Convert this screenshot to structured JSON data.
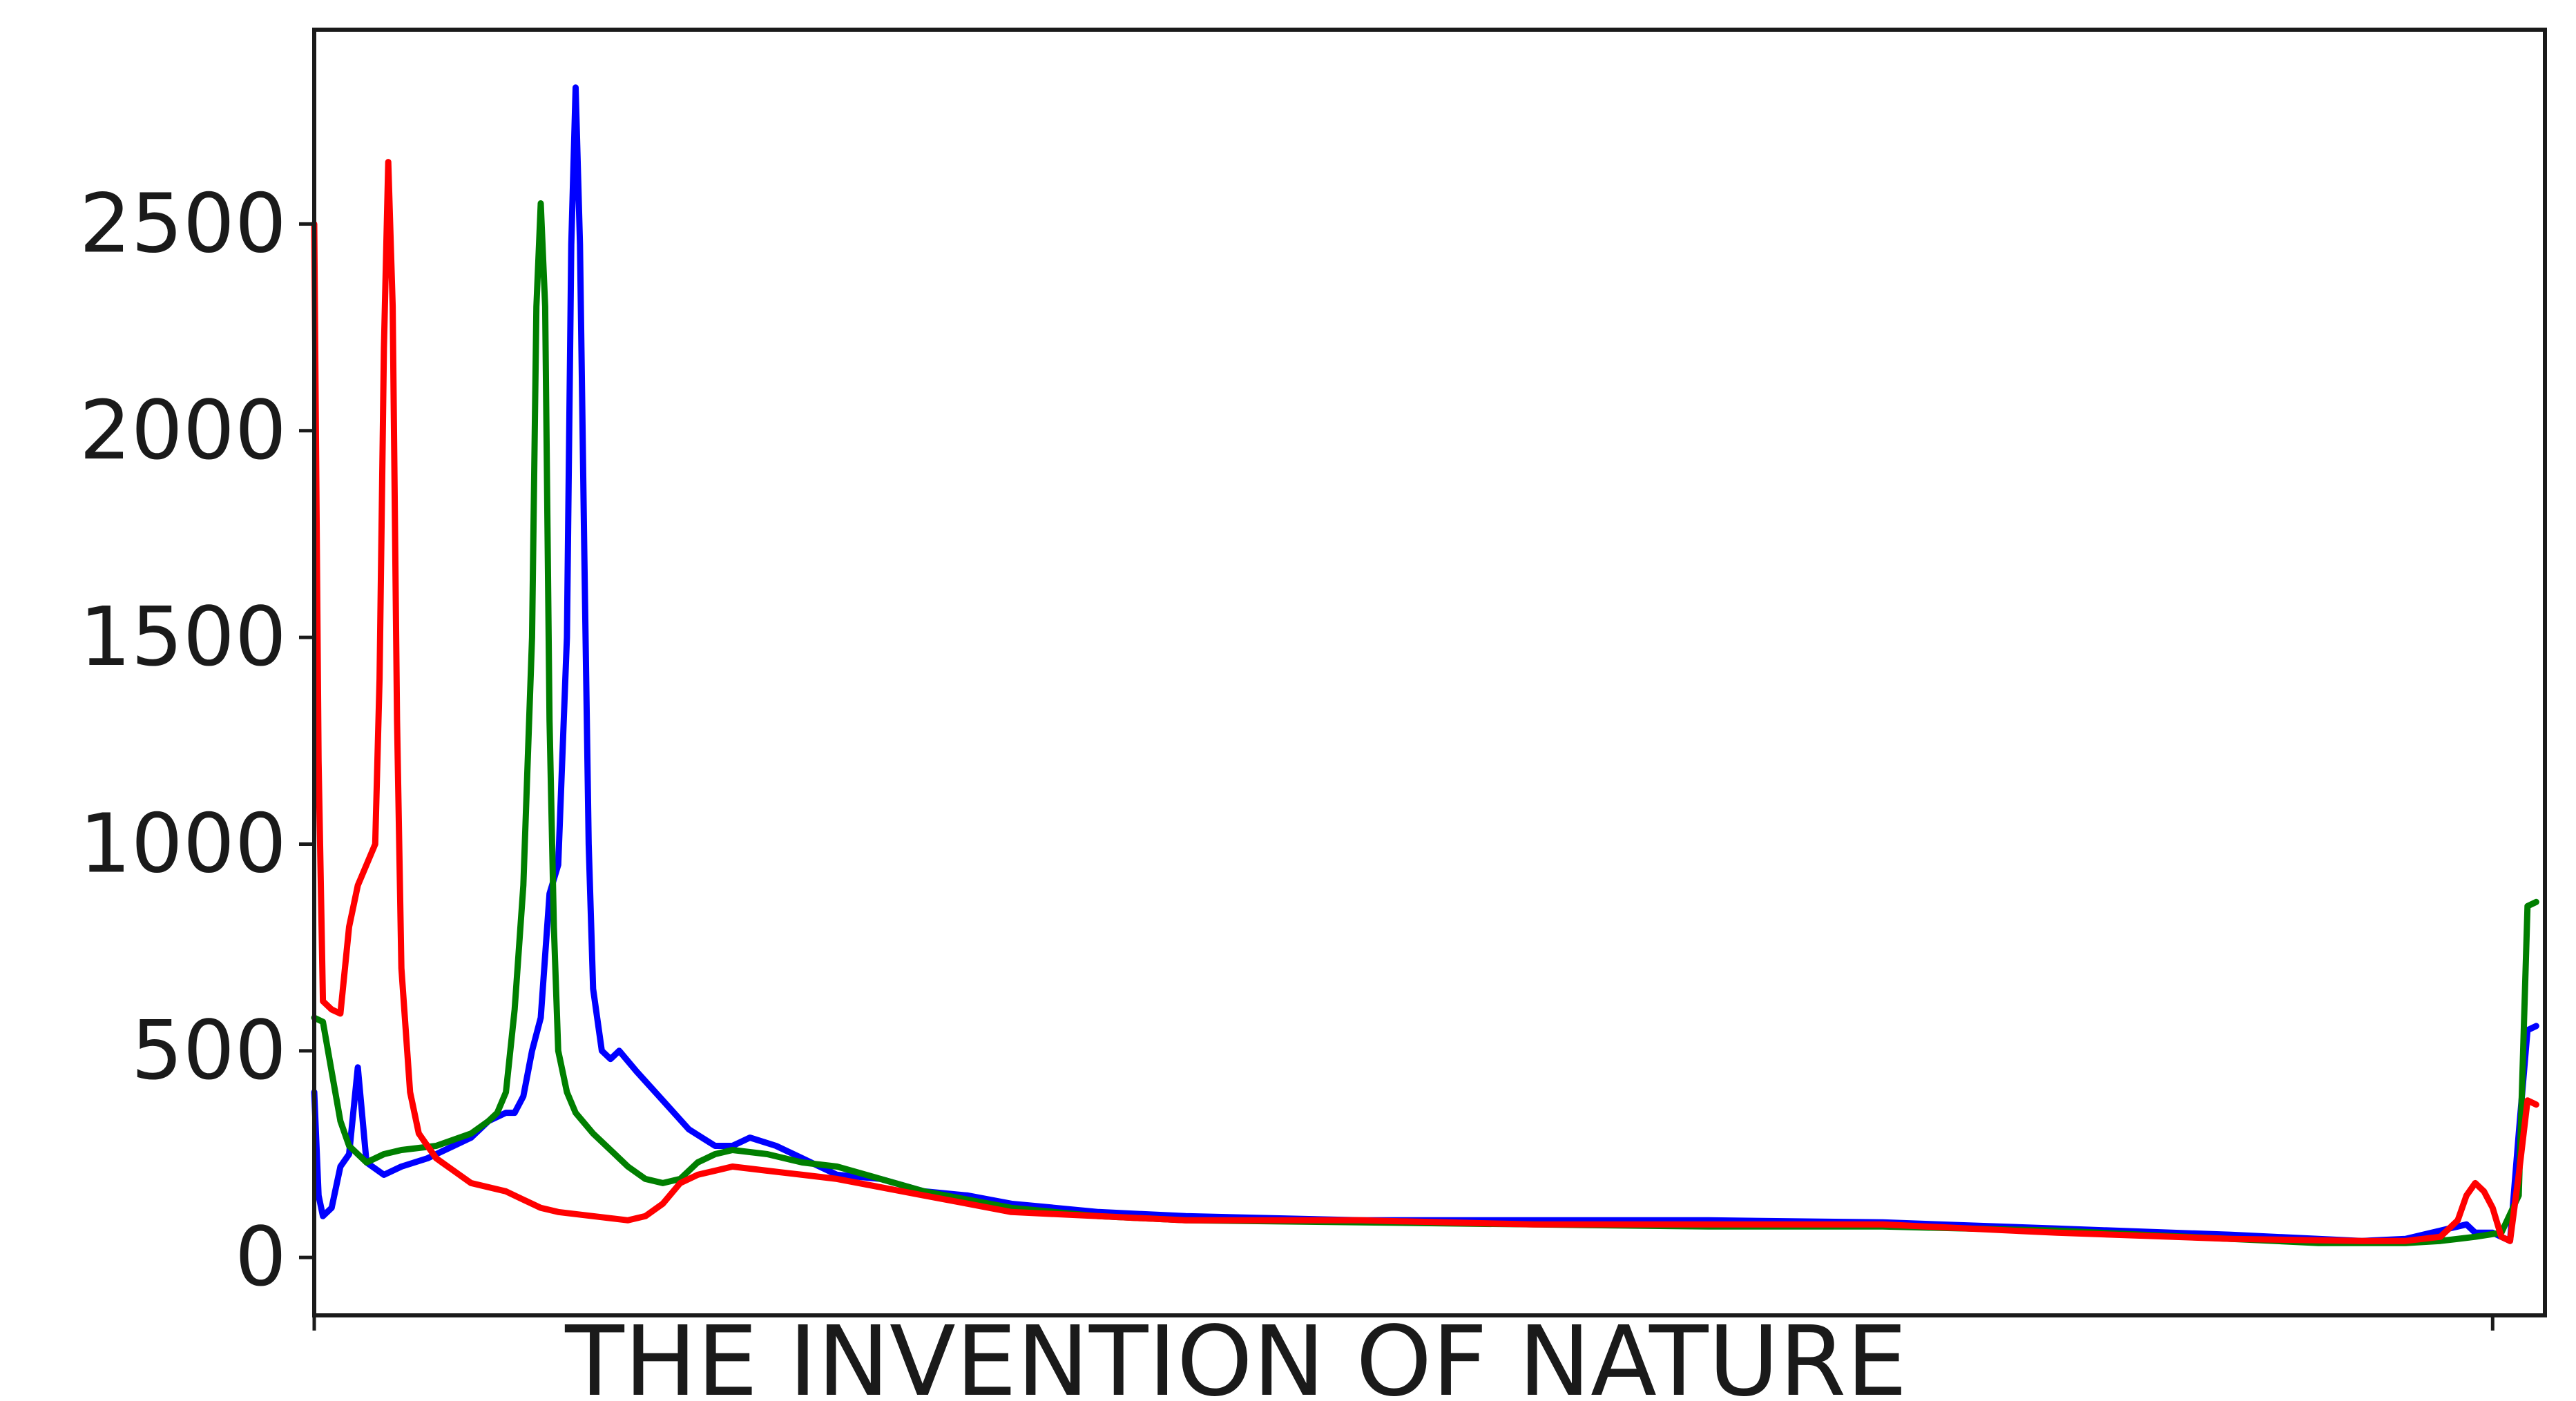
{
  "chart_data": {
    "type": "line",
    "title": "",
    "xlabel": "THE INVENTION OF NATURE",
    "ylabel": "",
    "xlim": [
      0,
      256
    ],
    "ylim": [
      -140,
      2970
    ],
    "yticks": [
      0,
      500,
      1000,
      1500,
      2000,
      2500
    ],
    "xticks": [
      0,
      250
    ],
    "show_xtick_labels": false,
    "grid": false,
    "legend": "none",
    "series": [
      {
        "color": "#0000ff",
        "points": [
          [
            0,
            400
          ],
          [
            0.5,
            150
          ],
          [
            1,
            100
          ],
          [
            2,
            120
          ],
          [
            3,
            220
          ],
          [
            4,
            250
          ],
          [
            5,
            460
          ],
          [
            6,
            230
          ],
          [
            8,
            200
          ],
          [
            10,
            220
          ],
          [
            13,
            240
          ],
          [
            16,
            270
          ],
          [
            18,
            290
          ],
          [
            20,
            330
          ],
          [
            22,
            350
          ],
          [
            23,
            350
          ],
          [
            24,
            390
          ],
          [
            25,
            500
          ],
          [
            26,
            580
          ],
          [
            27,
            880
          ],
          [
            28,
            950
          ],
          [
            29,
            1500
          ],
          [
            29.5,
            2450
          ],
          [
            30,
            2830
          ],
          [
            30.5,
            2450
          ],
          [
            31,
            1700
          ],
          [
            31.5,
            1000
          ],
          [
            32,
            650
          ],
          [
            33,
            500
          ],
          [
            34,
            480
          ],
          [
            35,
            500
          ],
          [
            37,
            450
          ],
          [
            40,
            380
          ],
          [
            43,
            310
          ],
          [
            46,
            270
          ],
          [
            48,
            270
          ],
          [
            50,
            290
          ],
          [
            53,
            270
          ],
          [
            56,
            240
          ],
          [
            60,
            200
          ],
          [
            65,
            190
          ],
          [
            70,
            160
          ],
          [
            75,
            150
          ],
          [
            80,
            130
          ],
          [
            90,
            110
          ],
          [
            100,
            100
          ],
          [
            120,
            90
          ],
          [
            140,
            90
          ],
          [
            160,
            90
          ],
          [
            180,
            85
          ],
          [
            200,
            70
          ],
          [
            220,
            55
          ],
          [
            235,
            40
          ],
          [
            240,
            45
          ],
          [
            243,
            60
          ],
          [
            245,
            70
          ],
          [
            247,
            80
          ],
          [
            248,
            60
          ],
          [
            250,
            60
          ],
          [
            252,
            40
          ],
          [
            253,
            300
          ],
          [
            254,
            550
          ],
          [
            255,
            560
          ]
        ]
      },
      {
        "color": "#007f00",
        "points": [
          [
            0,
            580
          ],
          [
            1,
            570
          ],
          [
            2,
            450
          ],
          [
            3,
            330
          ],
          [
            4,
            270
          ],
          [
            6,
            230
          ],
          [
            8,
            250
          ],
          [
            10,
            260
          ],
          [
            14,
            270
          ],
          [
            18,
            300
          ],
          [
            20,
            330
          ],
          [
            21,
            350
          ],
          [
            22,
            400
          ],
          [
            23,
            600
          ],
          [
            24,
            900
          ],
          [
            25,
            1500
          ],
          [
            25.5,
            2300
          ],
          [
            26,
            2550
          ],
          [
            26.5,
            2300
          ],
          [
            27,
            1300
          ],
          [
            27.5,
            800
          ],
          [
            28,
            500
          ],
          [
            29,
            400
          ],
          [
            30,
            350
          ],
          [
            32,
            300
          ],
          [
            34,
            260
          ],
          [
            36,
            220
          ],
          [
            38,
            190
          ],
          [
            40,
            180
          ],
          [
            42,
            190
          ],
          [
            44,
            230
          ],
          [
            46,
            250
          ],
          [
            48,
            260
          ],
          [
            52,
            250
          ],
          [
            56,
            230
          ],
          [
            60,
            220
          ],
          [
            65,
            190
          ],
          [
            70,
            160
          ],
          [
            75,
            140
          ],
          [
            80,
            120
          ],
          [
            90,
            100
          ],
          [
            100,
            90
          ],
          [
            120,
            85
          ],
          [
            140,
            80
          ],
          [
            160,
            75
          ],
          [
            180,
            75
          ],
          [
            200,
            65
          ],
          [
            220,
            45
          ],
          [
            230,
            35
          ],
          [
            240,
            35
          ],
          [
            244,
            40
          ],
          [
            248,
            50
          ],
          [
            251,
            60
          ],
          [
            253,
            150
          ],
          [
            254,
            850
          ],
          [
            255,
            860
          ]
        ]
      },
      {
        "color": "#ff0000",
        "points": [
          [
            0,
            2500
          ],
          [
            0.5,
            1200
          ],
          [
            1,
            620
          ],
          [
            2,
            600
          ],
          [
            3,
            590
          ],
          [
            4,
            800
          ],
          [
            5,
            900
          ],
          [
            6,
            950
          ],
          [
            7,
            1000
          ],
          [
            7.5,
            1400
          ],
          [
            8,
            2200
          ],
          [
            8.5,
            2650
          ],
          [
            9,
            2300
          ],
          [
            9.5,
            1300
          ],
          [
            10,
            700
          ],
          [
            11,
            400
          ],
          [
            12,
            300
          ],
          [
            14,
            240
          ],
          [
            16,
            210
          ],
          [
            18,
            180
          ],
          [
            20,
            170
          ],
          [
            22,
            160
          ],
          [
            24,
            140
          ],
          [
            26,
            120
          ],
          [
            28,
            110
          ],
          [
            30,
            105
          ],
          [
            32,
            100
          ],
          [
            34,
            95
          ],
          [
            36,
            90
          ],
          [
            38,
            100
          ],
          [
            40,
            130
          ],
          [
            42,
            180
          ],
          [
            44,
            200
          ],
          [
            46,
            210
          ],
          [
            48,
            220
          ],
          [
            52,
            210
          ],
          [
            56,
            200
          ],
          [
            60,
            190
          ],
          [
            65,
            170
          ],
          [
            70,
            150
          ],
          [
            75,
            130
          ],
          [
            80,
            110
          ],
          [
            90,
            100
          ],
          [
            100,
            90
          ],
          [
            120,
            90
          ],
          [
            140,
            80
          ],
          [
            160,
            80
          ],
          [
            180,
            80
          ],
          [
            200,
            60
          ],
          [
            220,
            45
          ],
          [
            235,
            40
          ],
          [
            240,
            40
          ],
          [
            244,
            50
          ],
          [
            246,
            90
          ],
          [
            247,
            150
          ],
          [
            248,
            180
          ],
          [
            249,
            160
          ],
          [
            250,
            120
          ],
          [
            251,
            50
          ],
          [
            252,
            40
          ],
          [
            253,
            200
          ],
          [
            254,
            380
          ],
          [
            255,
            370
          ]
        ]
      }
    ]
  }
}
